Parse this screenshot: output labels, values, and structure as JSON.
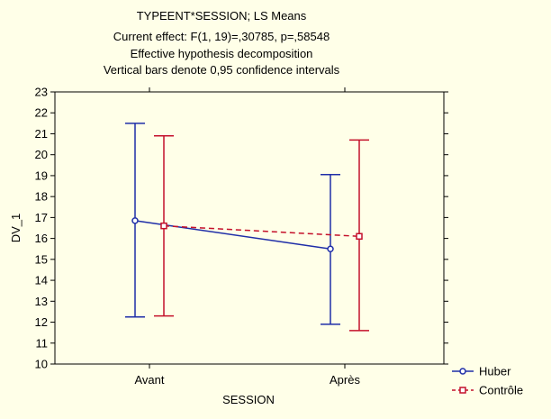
{
  "chart_data": {
    "type": "line",
    "title_lines": [
      "TYPEENT*SESSION; LS Means",
      "Current effect: F(1, 19)=,30785, p=,58548",
      "Effective hypothesis decomposition",
      "Vertical bars denote 0,95 confidence intervals"
    ],
    "xlabel": "SESSION",
    "ylabel": "DV_1",
    "categories": [
      "Avant",
      "Après"
    ],
    "ylim": [
      10,
      23
    ],
    "yticks": [
      "10",
      "11",
      "12",
      "13",
      "14",
      "15",
      "16",
      "17",
      "18",
      "19",
      "20",
      "21",
      "22",
      "23"
    ],
    "grid": false,
    "legend_position": "bottom-right",
    "series": [
      {
        "name": "Huber",
        "color": "#1f2ea8",
        "line_style": "solid",
        "marker": "circle",
        "values": [
          16.85,
          15.5
        ],
        "ci_low": [
          12.25,
          11.9
        ],
        "ci_high": [
          21.5,
          19.05
        ]
      },
      {
        "name": "Contrôle",
        "color": "#c4102a",
        "line_style": "dashed",
        "marker": "square",
        "values": [
          16.6,
          16.1
        ],
        "ci_low": [
          12.3,
          11.6
        ],
        "ci_high": [
          20.9,
          20.7
        ]
      }
    ]
  }
}
